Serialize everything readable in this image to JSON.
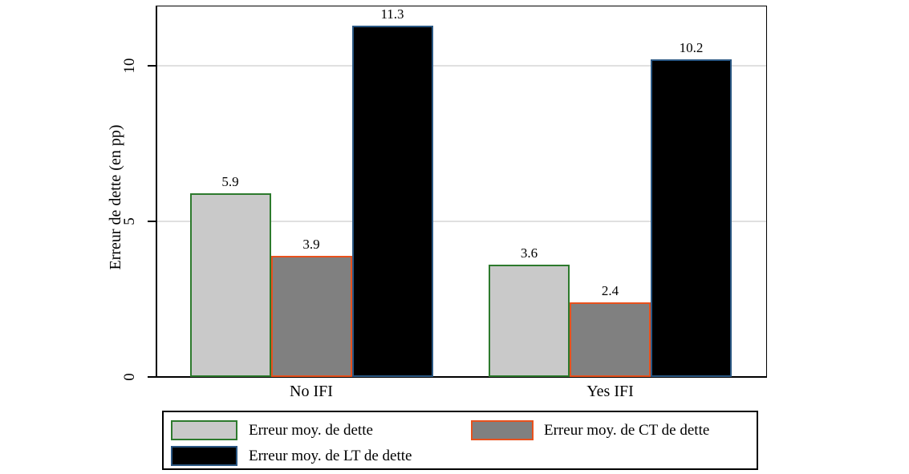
{
  "chart_data": {
    "type": "bar",
    "title": "",
    "xlabel": "",
    "ylabel": "Erreur de dette (en pp)",
    "categories": [
      "No IFI",
      "Yes IFI"
    ],
    "series": [
      {
        "name": "Erreur moy. de dette",
        "values": [
          5.9,
          3.6
        ],
        "fill": "#c9c9c9",
        "border": "#2d7a2d"
      },
      {
        "name": "Erreur moy. de CT de dette",
        "values": [
          3.9,
          2.4
        ],
        "fill": "#808080",
        "border": "#e8511d"
      },
      {
        "name": "Erreur moy. de LT de dette",
        "values": [
          11.3,
          10.2
        ],
        "fill": "#000000",
        "border": "#2a5783"
      }
    ],
    "bar_value_labels": [
      [
        "5.9",
        "3.9",
        "11.3"
      ],
      [
        "3.6",
        "2.4",
        "10.2"
      ]
    ],
    "y_ticks": [
      "0",
      "5",
      "10"
    ],
    "y_tick_values": [
      0,
      5,
      10
    ],
    "gridline_values": [
      5,
      10
    ],
    "ylim": [
      0,
      11.9
    ],
    "grid": true,
    "legend_position": "bottom",
    "legend_rows": 2,
    "colors": {
      "background": "#ffffff",
      "grid": "#e0e0e0",
      "axis": "#000000",
      "text": "#000000"
    }
  }
}
